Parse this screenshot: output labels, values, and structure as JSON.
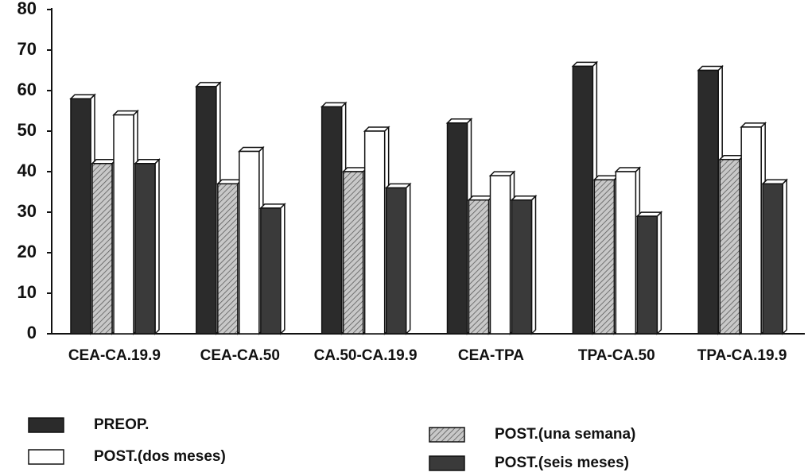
{
  "chart_data": {
    "type": "bar",
    "categories": [
      "CEA-CA.19.9",
      "CEA-CA.50",
      "CA.50-CA.19.9",
      "CEA-TPA",
      "TPA-CA.50",
      "TPA-CA.19.9"
    ],
    "series": [
      {
        "name": "PREOP.",
        "color": "#2b2b2b",
        "values": [
          58,
          61,
          56,
          52,
          66,
          65
        ]
      },
      {
        "name": "POST.(una semana)",
        "color": "#b5b5b5",
        "values": [
          42,
          37,
          40,
          33,
          38,
          43
        ]
      },
      {
        "name": "POST.(dos meses)",
        "color": "#ffffff",
        "values": [
          54,
          45,
          50,
          39,
          40,
          51
        ]
      },
      {
        "name": "POST.(seis meses)",
        "color": "#3a3a3a",
        "values": [
          42,
          31,
          36,
          33,
          29,
          37
        ]
      }
    ],
    "ylim": [
      0,
      80
    ],
    "yticks": [
      0,
      10,
      20,
      30,
      40,
      50,
      60,
      70,
      80
    ],
    "grid": false
  }
}
